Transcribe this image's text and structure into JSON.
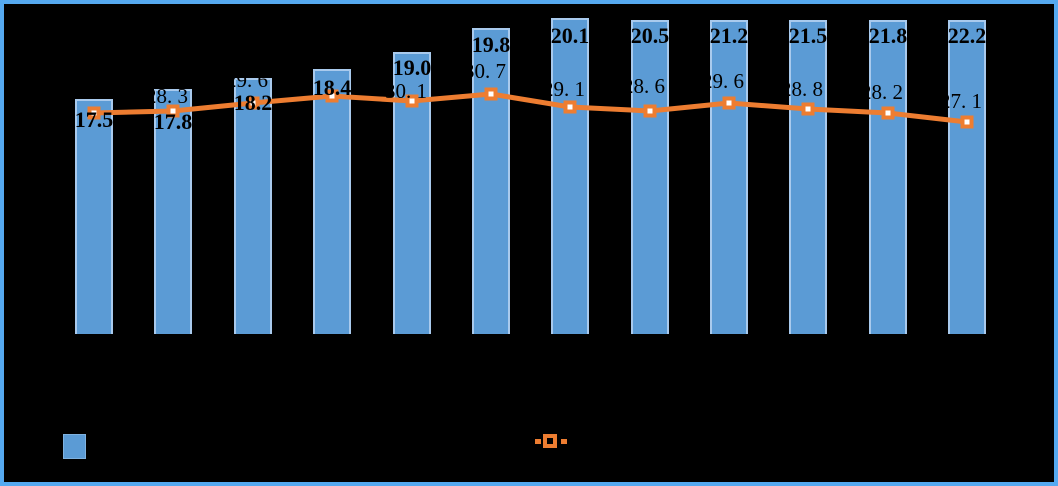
{
  "chart_data": {
    "type": "combo",
    "title": "",
    "x_tick_labels_visible": false,
    "y_axis_visible": false,
    "gridlines": false,
    "legend_position": "bottom",
    "categories": [
      "",
      "",
      "",
      "",
      "",
      "",
      "",
      "",
      "",
      "",
      "",
      ""
    ],
    "series": [
      {
        "name": "bar-series",
        "type": "bar",
        "color": "#5b9bd5",
        "values": [
          17.5,
          17.8,
          18.2,
          18.4,
          19.0,
          19.8,
          20.1,
          20.5,
          21.2,
          21.5,
          21.8,
          22.2
        ],
        "labels": [
          "17.5",
          "17.8",
          "18.2",
          "18.4",
          "19.0",
          "19.8",
          "20.1",
          "20.5",
          "21.2",
          "21.5",
          "21.8",
          "22.2"
        ]
      },
      {
        "name": "line-series",
        "type": "line",
        "color": "#ed7d31",
        "values": [
          null,
          28.3,
          29.6,
          null,
          30.1,
          30.7,
          29.1,
          28.6,
          29.6,
          28.8,
          28.2,
          27.1
        ],
        "labels": [
          "",
          "28. 3",
          "29. 6",
          "",
          "30. 1",
          "30. 7",
          "29. 1",
          "28. 6",
          "29. 6",
          "28. 8",
          "28. 2",
          "27. 1"
        ]
      }
    ]
  },
  "legend": {
    "bar_label": "",
    "line_label": ""
  },
  "colors": {
    "background": "#000000",
    "frame_border": "#55a9f0",
    "bar_fill": "#5b9bd5",
    "bar_edge": "#a9caed",
    "line": "#ed7d31",
    "marker_center": "#ffffff",
    "data_label_text": "#000000"
  }
}
